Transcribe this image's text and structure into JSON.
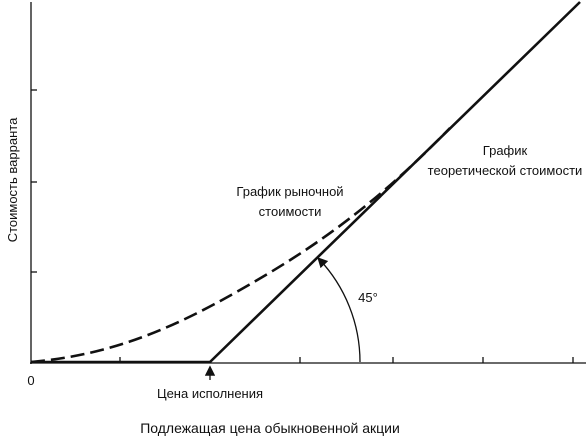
{
  "axes": {
    "y_label": "Стоимость варранта",
    "x_label": "Подлежащая цена обыкновенной акции",
    "origin": "0"
  },
  "exercise_price": "Цена исполнения",
  "market_value_label": [
    "График рыночной",
    "стоимости"
  ],
  "theoretical_value_label": [
    "График",
    "теоретической стоимости"
  ],
  "angle_label": "45°"
}
